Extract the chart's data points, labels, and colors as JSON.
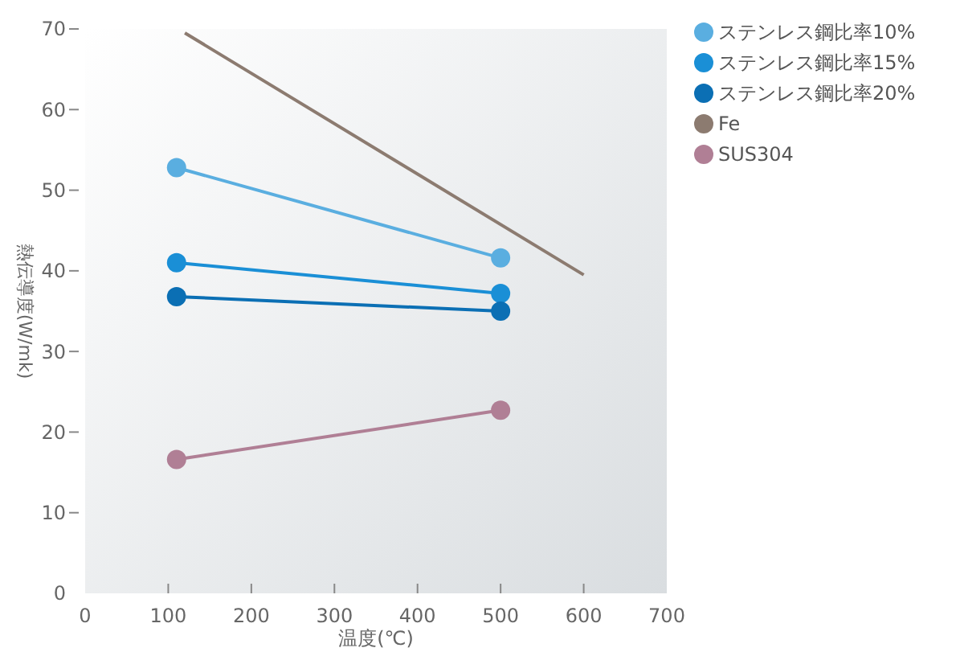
{
  "chart_data": {
    "type": "line",
    "xlabel": "温度(℃)",
    "ylabel": "熱伝導度(W/mk)",
    "xlim": [
      0,
      700
    ],
    "xticks": [
      0,
      100,
      200,
      300,
      400,
      500,
      600,
      700
    ],
    "ylim": [
      0,
      70
    ],
    "yticks": [
      0,
      10,
      20,
      30,
      40,
      50,
      60,
      70
    ],
    "grid": false,
    "legend": "right",
    "marker": "circle",
    "series": [
      {
        "name": "ステンレス鋼比率10%",
        "color": "#5aaee0",
        "x": [
          110,
          500
        ],
        "values": [
          52.8,
          41.6
        ]
      },
      {
        "name": "ステンレス鋼比率15%",
        "color": "#1a8fd6",
        "x": [
          110,
          500
        ],
        "values": [
          41,
          37.2
        ]
      },
      {
        "name": "ステンレス鋼比率20%",
        "color": "#0b6fb4",
        "x": [
          110,
          500
        ],
        "values": [
          36.8,
          35
        ]
      },
      {
        "name": "Fe",
        "color": "#8c7b70",
        "x": [
          120,
          600
        ],
        "values": [
          69.5,
          39.5
        ],
        "marker": "none"
      },
      {
        "name": "SUS304",
        "color": "#b07f95",
        "x": [
          110,
          500
        ],
        "values": [
          16.6,
          22.7
        ]
      }
    ]
  }
}
